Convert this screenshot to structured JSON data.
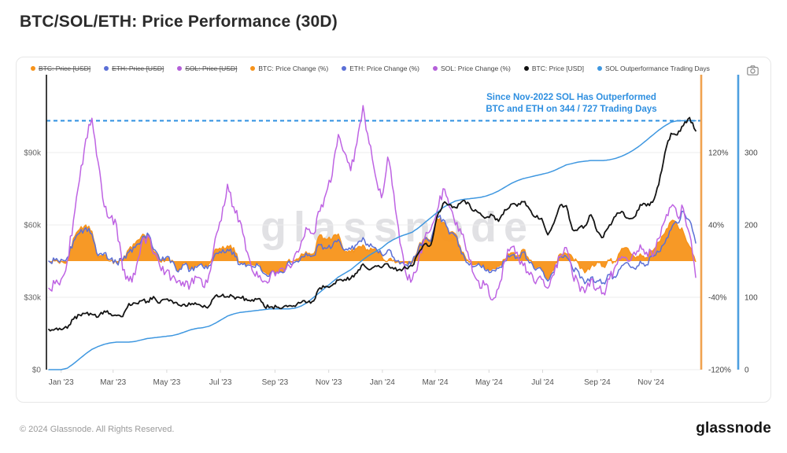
{
  "page": {
    "title": "BTC/SOL/ETH: Price Performance (30D)",
    "footer_copyright": "© 2024 Glassnode. All Rights Reserved.",
    "brand_logo": "glassnode",
    "watermark": "glassnode"
  },
  "legend": {
    "items": [
      {
        "label": "BTC: Price [USD]",
        "color": "#F7931A",
        "disabled": true
      },
      {
        "label": "ETH: Price [USD]",
        "color": "#5B6FD6",
        "disabled": true
      },
      {
        "label": "SOL: Price [USD]",
        "color": "#B45FD9",
        "disabled": true
      },
      {
        "label": "BTC: Price Change (%)",
        "color": "#F7931A",
        "disabled": false
      },
      {
        "label": "ETH: Price Change (%)",
        "color": "#5B6FD6",
        "disabled": false
      },
      {
        "label": "SOL: Price Change (%)",
        "color": "#B45FD9",
        "disabled": false
      },
      {
        "label": "BTC: Price [USD]",
        "color": "#111111",
        "disabled": false
      },
      {
        "label": "SOL Outperformance Trading Days",
        "color": "#3E97E0",
        "disabled": false
      }
    ]
  },
  "annotation": {
    "line1": "Since Nov-2022 SOL Has Outperformed",
    "line2": "BTC and ETH on 344 / 727 Trading Days",
    "color": "#2E8FE0"
  },
  "chart_data": {
    "type": "line",
    "title": "BTC/SOL/ETH: Price Performance (30D)",
    "x_range": "Dec 2022 - Dec 2024, weekly samples",
    "x_tick_labels": [
      "Jan '23",
      "Mar '23",
      "May '23",
      "Jul '23",
      "Sep '23",
      "Nov '23",
      "Jan '24",
      "Mar '24",
      "May '24",
      "Jul '24",
      "Sep '24",
      "Nov '24"
    ],
    "grid": true,
    "axes": {
      "left_usd": {
        "ticks": [
          "$90k",
          "$60k",
          "$30k",
          "$0"
        ],
        "values": [
          90,
          60,
          30,
          0
        ],
        "units": "USD thousands",
        "color": "#666666"
      },
      "right_pct": {
        "ticks": [
          "120%",
          "40%",
          "-40%",
          "-120%"
        ],
        "values": [
          120,
          40,
          -40,
          -120
        ],
        "axis_color": "#F0A24F",
        "range": [
          -120,
          200
        ]
      },
      "right_days": {
        "ticks": [
          "300",
          "200",
          "100",
          "0"
        ],
        "values": [
          300,
          200,
          100,
          0
        ],
        "axis_color": "#4D9FE0",
        "range": [
          0,
          405
        ]
      }
    },
    "reference_line": {
      "axis": "days",
      "value": 344,
      "style": "dashed",
      "color": "#2E8FE0"
    },
    "series": [
      {
        "name": "BTC: Price Change (%)",
        "render": "area",
        "axis": "pct",
        "color": "#F7931A",
        "values": [
          0,
          0,
          0,
          0,
          25,
          35,
          40,
          33,
          4,
          7,
          0,
          -2,
          1,
          13,
          19,
          27,
          29,
          11,
          0,
          2,
          1,
          -11,
          -2,
          -8,
          -5,
          -4,
          -3,
          13,
          13,
          17,
          15,
          -2,
          -4,
          -4,
          -3,
          -12,
          -12,
          -11,
          -12,
          2,
          1,
          8,
          8,
          8,
          29,
          24,
          25,
          30,
          10,
          10,
          14,
          18,
          11,
          14,
          6,
          0,
          1,
          -3,
          -1,
          -2,
          16,
          25,
          23,
          47,
          43,
          31,
          30,
          10,
          1,
          -4,
          -3,
          -9,
          -8,
          -6,
          2,
          9,
          6,
          13,
          1,
          -8,
          -8,
          -20,
          -9,
          8,
          8,
          4,
          -3,
          -13,
          -6,
          -1,
          -6,
          1,
          -1,
          14,
          14,
          5,
          8,
          4,
          11,
          21,
          31,
          44,
          40,
          32,
          16,
          -1
        ]
      },
      {
        "name": "ETH: Price Change (%)",
        "render": "line",
        "axis": "pct",
        "color": "#5B6FD6",
        "values": [
          0,
          1,
          2,
          4,
          22,
          31,
          37,
          30,
          6,
          9,
          2,
          -2,
          1,
          10,
          15,
          22,
          31,
          13,
          2,
          4,
          0,
          -12,
          -4,
          -10,
          -7,
          -6,
          -5,
          8,
          9,
          13,
          10,
          -4,
          -6,
          -6,
          -5,
          -14,
          -13,
          -12,
          -13,
          0,
          -1,
          5,
          6,
          6,
          18,
          14,
          16,
          24,
          12,
          13,
          18,
          26,
          16,
          15,
          8,
          12,
          4,
          -3,
          -4,
          0,
          14,
          24,
          22,
          50,
          46,
          30,
          28,
          8,
          -2,
          -6,
          -5,
          -11,
          -10,
          -8,
          0,
          6,
          4,
          10,
          -2,
          -10,
          -10,
          -22,
          -12,
          5,
          5,
          -8,
          -12,
          -25,
          -18,
          -22,
          -24,
          -15,
          -18,
          -5,
          -2,
          -8,
          0,
          -4,
          5,
          10,
          20,
          35,
          42,
          55,
          45,
          20
        ]
      },
      {
        "name": "SOL: Price Change (%)",
        "render": "line",
        "axis": "pct",
        "color": "#BE63E3",
        "values": [
          -30,
          -25,
          -20,
          0,
          45,
          90,
          135,
          158,
          110,
          60,
          48,
          40,
          -10,
          -22,
          -15,
          18,
          28,
          8,
          -5,
          -12,
          -18,
          -22,
          -28,
          -25,
          -18,
          -28,
          -15,
          25,
          45,
          85,
          60,
          45,
          12,
          -10,
          -18,
          -22,
          -15,
          -12,
          -8,
          -5,
          8,
          22,
          35,
          30,
          55,
          75,
          95,
          140,
          120,
          100,
          130,
          172,
          130,
          95,
          70,
          115,
          75,
          20,
          -15,
          -20,
          0,
          25,
          35,
          55,
          80,
          60,
          40,
          30,
          10,
          -15,
          -30,
          -25,
          -43,
          -30,
          0,
          15,
          10,
          -5,
          -15,
          -25,
          -20,
          -30,
          -15,
          5,
          15,
          -15,
          -25,
          -35,
          -20,
          -30,
          -35,
          -20,
          -5,
          5,
          0,
          10,
          18,
          10,
          5,
          25,
          45,
          60,
          50,
          58,
          30,
          -18
        ]
      },
      {
        "name": "SOL Outperformance Trading Days",
        "render": "line",
        "axis": "days",
        "color": "#3E97E0",
        "values": [
          0,
          0,
          0,
          2,
          8,
          15,
          22,
          28,
          32,
          35,
          37,
          38,
          38,
          38,
          39,
          41,
          43,
          44,
          45,
          46,
          47,
          49,
          52,
          55,
          57,
          58,
          60,
          64,
          69,
          74,
          77,
          79,
          80,
          81,
          82,
          83,
          84,
          84,
          84,
          84,
          85,
          88,
          93,
          100,
          107,
          114,
          121,
          128,
          133,
          138,
          145,
          152,
          158,
          163,
          168,
          175,
          180,
          184,
          187,
          190,
          196,
          203,
          210,
          217,
          224,
          229,
          233,
          235,
          236,
          237,
          238,
          240,
          243,
          247,
          252,
          257,
          261,
          264,
          266,
          268,
          270,
          272,
          275,
          279,
          283,
          285,
          287,
          288,
          289,
          289,
          289,
          290,
          292,
          295,
          299,
          304,
          310,
          317,
          324,
          331,
          337,
          342,
          344,
          344,
          344,
          344
        ]
      },
      {
        "name": "BTC: Price [USD]",
        "render": "line",
        "axis": "usd",
        "color": "#141414",
        "values": [
          16.7,
          16.8,
          16.6,
          17.2,
          20.9,
          22.7,
          23.3,
          22.9,
          21.8,
          24.3,
          23.2,
          22.4,
          22.0,
          27.4,
          27.6,
          28.5,
          28.3,
          30.3,
          27.6,
          29.2,
          28.5,
          26.9,
          27.1,
          26.9,
          27.1,
          25.9,
          26.3,
          30.5,
          30.6,
          30.3,
          30.2,
          29.8,
          29.4,
          29.0,
          29.4,
          26.1,
          26.0,
          25.9,
          25.8,
          26.5,
          26.2,
          27.9,
          27.9,
          28.5,
          33.9,
          34.5,
          35.0,
          37.1,
          37.4,
          37.8,
          40.0,
          43.8,
          41.4,
          43.0,
          42.3,
          43.9,
          41.7,
          41.6,
          42.0,
          43.0,
          48.3,
          52.1,
          51.7,
          63.2,
          68.9,
          68.4,
          67.2,
          69.6,
          69.4,
          65.7,
          64.9,
          63.1,
          64.0,
          61.5,
          66.3,
          68.5,
          67.8,
          69.6,
          66.7,
          63.2,
          62.7,
          55.9,
          60.8,
          68.2,
          68.0,
          58.1,
          58.7,
          59.5,
          64.2,
          57.3,
          54.9,
          60.0,
          63.6,
          65.6,
          62.8,
          63.2,
          68.4,
          67.9,
          69.4,
          76.7,
          89.9,
          98.0,
          97.3,
          101.2,
          104.5,
          99.0
        ]
      }
    ]
  }
}
